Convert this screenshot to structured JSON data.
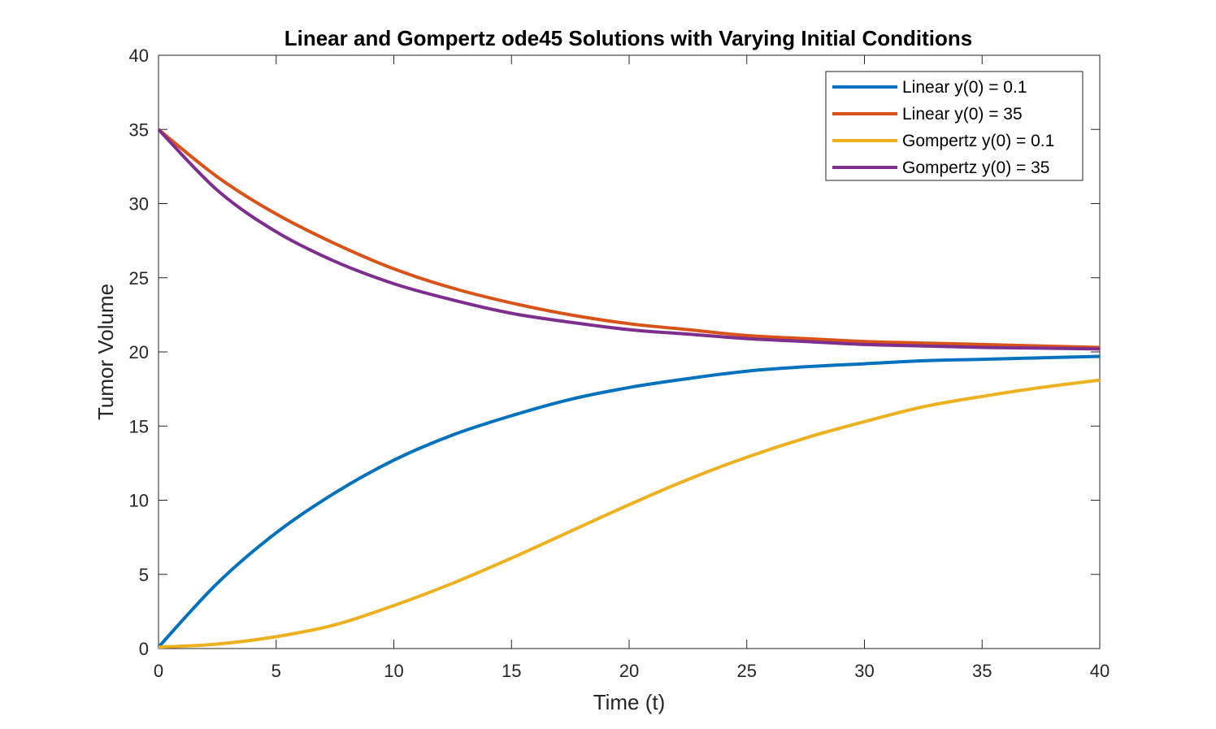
{
  "chart_data": {
    "type": "line",
    "title": "Linear and Gompertz ode45 Solutions with Varying Initial Conditions",
    "xlabel": "Time (t)",
    "ylabel": "Tumor Volume",
    "xlim": [
      0,
      40
    ],
    "ylim": [
      0,
      40
    ],
    "xticks": [
      0,
      5,
      10,
      15,
      20,
      25,
      30,
      35,
      40
    ],
    "yticks": [
      0,
      5,
      10,
      15,
      20,
      25,
      30,
      35,
      40
    ],
    "grid": false,
    "box": true,
    "legend_position": "top-right",
    "x": [
      0,
      2.5,
      5,
      7.5,
      10,
      12.5,
      15,
      17.5,
      20,
      22.5,
      25,
      27.5,
      30,
      32.5,
      35,
      37.5,
      40
    ],
    "series": [
      {
        "name": "Linear y(0) = 0.1",
        "color": "#0072BD",
        "values": [
          0.1,
          4.4,
          7.8,
          10.5,
          12.7,
          14.4,
          15.7,
          16.8,
          17.6,
          18.2,
          18.7,
          19.0,
          19.2,
          19.4,
          19.5,
          19.6,
          19.7
        ]
      },
      {
        "name": "Linear y(0) = 35",
        "color": "#D95319",
        "values": [
          35,
          31.8,
          29.3,
          27.3,
          25.6,
          24.3,
          23.3,
          22.5,
          21.9,
          21.5,
          21.1,
          20.9,
          20.7,
          20.6,
          20.5,
          20.4,
          20.3
        ]
      },
      {
        "name": "Gompertz y(0) = 0.1",
        "color": "#EDB120",
        "values": [
          0.1,
          0.3,
          0.8,
          1.6,
          2.9,
          4.4,
          6.1,
          7.9,
          9.7,
          11.4,
          12.9,
          14.2,
          15.3,
          16.3,
          17.0,
          17.6,
          18.1
        ]
      },
      {
        "name": "Gompertz y(0) = 35",
        "color": "#7E2F8E",
        "values": [
          35,
          30.9,
          28.1,
          26.1,
          24.6,
          23.5,
          22.6,
          22.0,
          21.5,
          21.2,
          20.9,
          20.7,
          20.5,
          20.4,
          20.3,
          20.25,
          20.2
        ]
      }
    ]
  }
}
